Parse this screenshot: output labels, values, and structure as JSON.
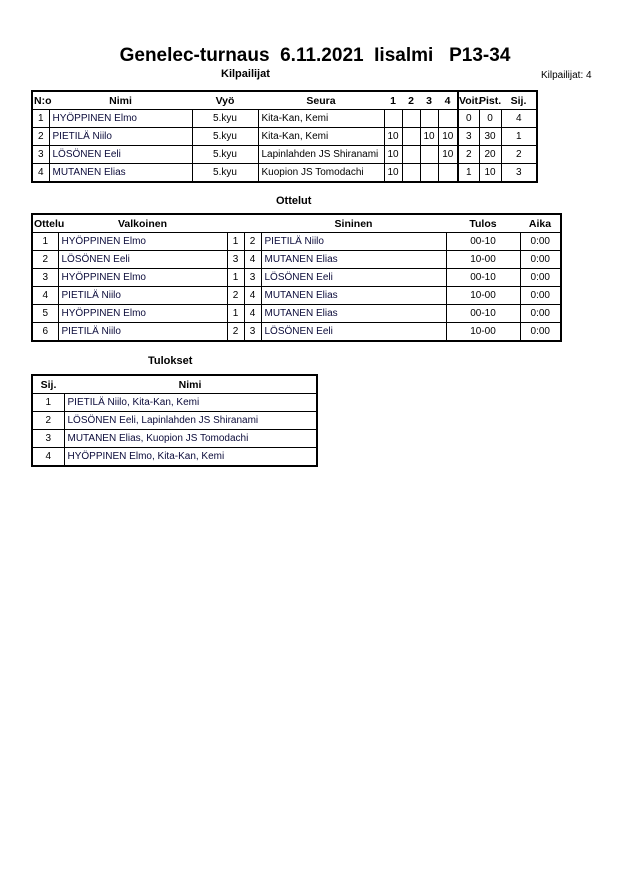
{
  "title": "Genelec-turnaus  6.11.2021  Iisalmi   P13-34",
  "competitors_section": {
    "title": "Kilpailijat",
    "count_label": "Kilpailijat: 4",
    "headers": {
      "no": "N:o",
      "name": "Nimi",
      "belt": "Vyö",
      "club": "Seura",
      "m1": "1",
      "m2": "2",
      "m3": "3",
      "m4": "4",
      "wins": "Voit.",
      "points": "Pist.",
      "place": "Sij."
    },
    "rows": [
      {
        "no": "1",
        "name": "HYÖPPINEN Elmo",
        "belt": "5.kyu",
        "club": "Kita-Kan, Kemi",
        "m1": "",
        "m2": "",
        "m3": "",
        "m4": "",
        "wins": "0",
        "points": "0",
        "place": "4"
      },
      {
        "no": "2",
        "name": "PIETILÄ Niilo",
        "belt": "5.kyu",
        "club": "Kita-Kan, Kemi",
        "m1": "10",
        "m2": "",
        "m3": "10",
        "m4": "10",
        "wins": "3",
        "points": "30",
        "place": "1"
      },
      {
        "no": "3",
        "name": "LÖSÖNEN Eeli",
        "belt": "5.kyu",
        "club": "Lapinlahden JS Shiranami",
        "m1": "10",
        "m2": "",
        "m3": "",
        "m4": "10",
        "wins": "2",
        "points": "20",
        "place": "2"
      },
      {
        "no": "4",
        "name": "MUTANEN Elias",
        "belt": "5.kyu",
        "club": "Kuopion JS Tomodachi",
        "m1": "10",
        "m2": "",
        "m3": "",
        "m4": "",
        "wins": "1",
        "points": "10",
        "place": "3"
      }
    ]
  },
  "matches_section": {
    "title": "Ottelut",
    "headers": {
      "match": "Ottelu",
      "white": "Valkoinen",
      "blue": "Sininen",
      "result": "Tulos",
      "time": "Aika"
    },
    "rows": [
      {
        "no": "1",
        "white": "HYÖPPINEN Elmo",
        "wn": "1",
        "bn": "2",
        "blue": "PIETILÄ Niilo",
        "result": "00-10",
        "time": "0:00"
      },
      {
        "no": "2",
        "white": "LÖSÖNEN Eeli",
        "wn": "3",
        "bn": "4",
        "blue": "MUTANEN Elias",
        "result": "10-00",
        "time": "0:00"
      },
      {
        "no": "3",
        "white": "HYÖPPINEN Elmo",
        "wn": "1",
        "bn": "3",
        "blue": "LÖSÖNEN Eeli",
        "result": "00-10",
        "time": "0:00"
      },
      {
        "no": "4",
        "white": "PIETILÄ Niilo",
        "wn": "2",
        "bn": "4",
        "blue": "MUTANEN Elias",
        "result": "10-00",
        "time": "0:00"
      },
      {
        "no": "5",
        "white": "HYÖPPINEN Elmo",
        "wn": "1",
        "bn": "4",
        "blue": "MUTANEN Elias",
        "result": "00-10",
        "time": "0:00"
      },
      {
        "no": "6",
        "white": "PIETILÄ Niilo",
        "wn": "2",
        "bn": "3",
        "blue": "LÖSÖNEN Eeli",
        "result": "10-00",
        "time": "0:00"
      }
    ]
  },
  "results_section": {
    "title": "Tulokset",
    "headers": {
      "place": "Sij.",
      "name": "Nimi"
    },
    "rows": [
      {
        "place": "1",
        "name": "PIETILÄ Niilo, Kita-Kan, Kemi"
      },
      {
        "place": "2",
        "name": "LÖSÖNEN Eeli, Lapinlahden JS Shiranami"
      },
      {
        "place": "3",
        "name": "MUTANEN Elias, Kuopion JS Tomodachi"
      },
      {
        "place": "4",
        "name": "HYÖPPINEN Elmo, Kita-Kan, Kemi"
      }
    ]
  }
}
